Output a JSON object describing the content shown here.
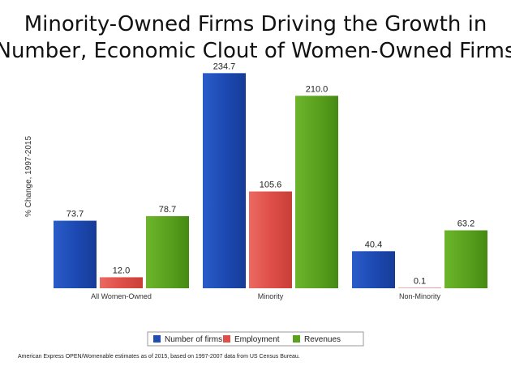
{
  "chart_data": {
    "type": "bar",
    "title": "Minority-Owned Firms Driving the Growth in Number, Economic Clout of Women-Owned Firms",
    "title_lines": [
      "Minority-Owned Firms Driving the Growth in",
      "Number, Economic Clout of Women-Owned Firms"
    ],
    "ylabel": "% Change, 1997-2015",
    "xlabel": "",
    "categories": [
      "All Women-Owned",
      "Minority",
      "Non-Minority"
    ],
    "series": [
      {
        "name": "Number of firms",
        "color": "#1f4fb5",
        "values": [
          73.7,
          234.7,
          40.4
        ]
      },
      {
        "name": "Employment",
        "color": "#e0504a",
        "values": [
          12.0,
          105.6,
          0.1
        ]
      },
      {
        "name": "Revenues",
        "color": "#5aa21e",
        "values": [
          78.7,
          210.0,
          63.2
        ]
      }
    ],
    "value_labels": [
      [
        "73.7",
        "234.7",
        "40.4"
      ],
      [
        "12.0",
        "105.6",
        "0.1"
      ],
      [
        "78.7",
        "210.0",
        "63.2"
      ]
    ],
    "ylim": [
      0,
      235
    ],
    "grid": false,
    "legend_position": "bottom",
    "source": "American Express OPEN/Womenable estimates as of 2015, based on 1997-2007 data from US Census Bureau."
  }
}
